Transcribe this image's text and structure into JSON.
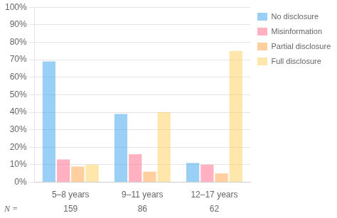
{
  "chart_data": {
    "type": "bar",
    "categories": [
      "5–8 years",
      "9–11 years",
      "12–17 years"
    ],
    "series": [
      {
        "name": "No disclosure",
        "values": [
          69,
          39,
          11
        ]
      },
      {
        "name": "Misinformation",
        "values": [
          13,
          16,
          10
        ]
      },
      {
        "name": "Partial disclosure",
        "values": [
          9,
          6,
          5
        ]
      },
      {
        "name": "Full disclosure",
        "values": [
          10,
          40,
          75
        ]
      }
    ],
    "ylim": [
      0,
      100
    ],
    "yticks": [
      {
        "value": 0,
        "label": "0%"
      },
      {
        "value": 10,
        "label": "10%"
      },
      {
        "value": 20,
        "label": "20%"
      },
      {
        "value": 30,
        "label": "30%"
      },
      {
        "value": 40,
        "label": "40%"
      },
      {
        "value": 50,
        "label": "50%"
      },
      {
        "value": 60,
        "label": "60%"
      },
      {
        "value": 70,
        "label": "70%"
      },
      {
        "value": 80,
        "label": "80%"
      },
      {
        "value": 90,
        "label": "90%"
      },
      {
        "value": 100,
        "label": "100%"
      }
    ],
    "grid": true,
    "legend": "right",
    "annotations": [
      {
        "text": "N ="
      },
      {
        "text": "159",
        "category": "5–8 years"
      },
      {
        "text": "86",
        "category": "9–11 years"
      },
      {
        "text": "62",
        "category": "12–17 years"
      }
    ]
  }
}
